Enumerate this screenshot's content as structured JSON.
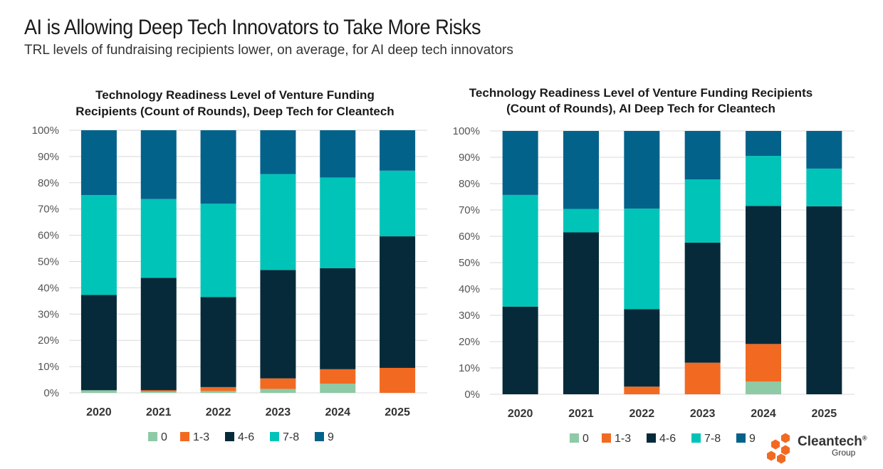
{
  "title": "AI is Allowing Deep Tech Innovators to Take More Risks",
  "subtitle": "TRL levels of fundraising recipients lower, on average, for AI deep tech innovators",
  "logo": {
    "name": "Cleantech",
    "sub": "Group",
    "mark": "®"
  },
  "colors": {
    "0": "#8ecaa5",
    "1-3": "#f26a22",
    "4-6": "#062a3a",
    "7-8": "#00c4b8",
    "9": "#03628a"
  },
  "chart_data": [
    {
      "type": "bar",
      "stacked": true,
      "title_lines": [
        "Technology Readiness Level of Venture Funding",
        "Recipients (Count of Rounds), Deep Tech for Cleantech"
      ],
      "categories": [
        "2020",
        "2021",
        "2022",
        "2023",
        "2024",
        "2025"
      ],
      "ylim": [
        0,
        100
      ],
      "yticks": [
        "0%",
        "10%",
        "20%",
        "30%",
        "40%",
        "50%",
        "60%",
        "70%",
        "80%",
        "90%",
        "100%"
      ],
      "legend_position": "bottom",
      "grid": true,
      "series": [
        {
          "name": "0",
          "values": [
            1.0,
            0.5,
            0.7,
            1.5,
            3.5,
            0.0
          ]
        },
        {
          "name": "1-3",
          "values": [
            0.0,
            0.5,
            1.5,
            4.0,
            5.5,
            9.5
          ]
        },
        {
          "name": "4-6",
          "values": [
            36.3,
            42.8,
            34.3,
            41.3,
            38.5,
            50.1
          ]
        },
        {
          "name": "7-8",
          "values": [
            38.0,
            30.0,
            35.5,
            36.5,
            34.5,
            25.0
          ]
        },
        {
          "name": "9",
          "values": [
            24.7,
            26.2,
            28.0,
            16.7,
            18.0,
            15.4
          ]
        }
      ]
    },
    {
      "type": "bar",
      "stacked": true,
      "title_lines": [
        "Technology Readiness Level of Venture Funding Recipients",
        "(Count of Rounds), AI Deep Tech for Cleantech"
      ],
      "categories": [
        "2020",
        "2021",
        "2022",
        "2023",
        "2024",
        "2025"
      ],
      "ylim": [
        0,
        100
      ],
      "yticks": [
        "0%",
        "10%",
        "20%",
        "30%",
        "40%",
        "50%",
        "60%",
        "70%",
        "80%",
        "90%",
        "100%"
      ],
      "legend_position": "bottom",
      "grid": true,
      "series": [
        {
          "name": "0",
          "values": [
            0.0,
            0.0,
            0.0,
            0.0,
            4.8,
            0.0
          ]
        },
        {
          "name": "1-3",
          "values": [
            0.0,
            0.0,
            2.9,
            12.0,
            14.3,
            0.0
          ]
        },
        {
          "name": "4-6",
          "values": [
            33.3,
            61.5,
            29.4,
            45.6,
            52.4,
            71.4
          ]
        },
        {
          "name": "7-8",
          "values": [
            42.4,
            8.9,
            38.2,
            24.0,
            19.0,
            14.3
          ]
        },
        {
          "name": "9",
          "values": [
            24.3,
            29.6,
            29.5,
            18.4,
            9.5,
            14.3
          ]
        }
      ]
    }
  ]
}
